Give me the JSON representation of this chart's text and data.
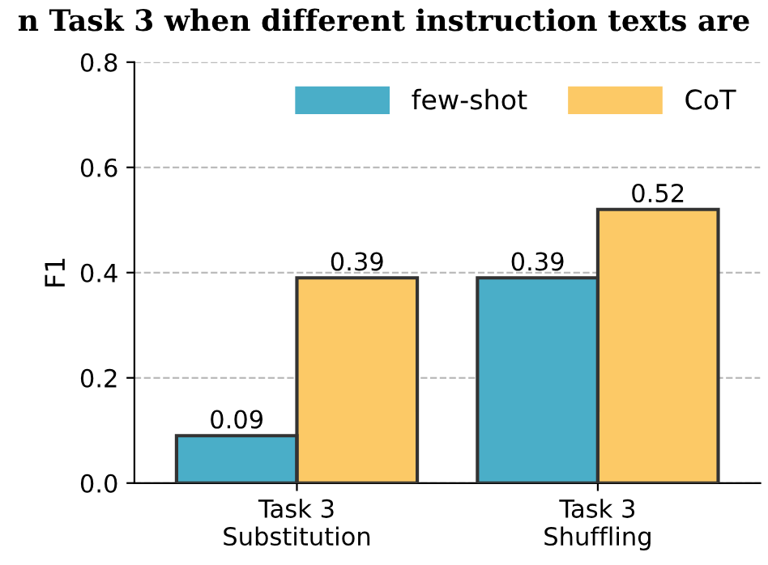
{
  "chart_data": {
    "type": "bar",
    "annotations": [
      "n Task 3 when different instruction texts are"
    ],
    "ylabel": "F1",
    "categories": [
      "Task 3\nSubstitution",
      "Task 3\nShuffling"
    ],
    "series": [
      {
        "name": "few-shot",
        "color": "#4aaec8",
        "values": [
          0.09,
          0.39
        ]
      },
      {
        "name": "CoT",
        "color": "#fcc966",
        "values": [
          0.39,
          0.52
        ]
      }
    ],
    "ylim": [
      0,
      0.8
    ],
    "yticks": [
      {
        "value": 0,
        "label": "0.0"
      },
      0.2,
      0.4,
      0.6,
      0.8
    ],
    "grid": "y",
    "legend": "top right",
    "data_labels": true
  }
}
